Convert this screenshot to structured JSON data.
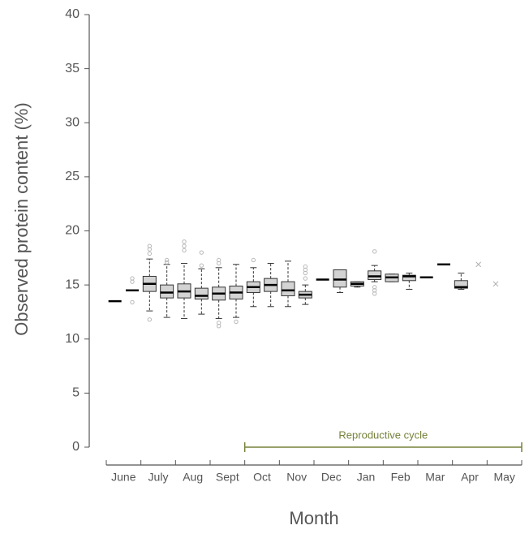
{
  "chart_data": {
    "type": "box",
    "y_label": "Observed protein content (%)",
    "x_label": "Month",
    "categories": [
      "June",
      "July",
      "Aug",
      "Sept",
      "Oct",
      "Nov",
      "Dec",
      "Jan",
      "Feb",
      "Mar",
      "Apr",
      "May"
    ],
    "ylim": [
      0,
      40
    ],
    "yticks": [
      0,
      5,
      10,
      15,
      20,
      25,
      30,
      35,
      40
    ],
    "box_color": "#d3d3d3",
    "outlier_color": "#b8b8b8",
    "annotation": {
      "text": "Reproductive cycle",
      "color": "#76823a"
    },
    "boxes": [
      {
        "min": 13.5,
        "q1": 13.5,
        "median": 13.5,
        "q3": 13.5,
        "max": 13.5,
        "outliers": []
      },
      {
        "min": 14.5,
        "q1": 14.5,
        "median": 14.5,
        "q3": 14.5,
        "max": 14.5,
        "outliers": [
          15.6,
          15.3,
          13.4
        ]
      },
      {
        "min": 12.6,
        "q1": 14.4,
        "median": 15.1,
        "q3": 15.8,
        "max": 17.4,
        "outliers": [
          18.6,
          18.3,
          17.9,
          11.8
        ]
      },
      {
        "min": 12.0,
        "q1": 13.8,
        "median": 14.3,
        "q3": 15.0,
        "max": 16.9,
        "outliers": [
          17.3,
          17.1
        ]
      },
      {
        "min": 11.9,
        "q1": 13.8,
        "median": 14.4,
        "q3": 15.1,
        "max": 17.0,
        "outliers": [
          19.0,
          18.6,
          18.2
        ]
      },
      {
        "min": 12.3,
        "q1": 13.7,
        "median": 14.0,
        "q3": 14.7,
        "max": 16.5,
        "outliers": [
          18.0,
          16.8
        ]
      },
      {
        "min": 11.9,
        "q1": 13.6,
        "median": 14.2,
        "q3": 14.8,
        "max": 16.6,
        "outliers": [
          17.3,
          17.0,
          11.5,
          11.2
        ]
      },
      {
        "min": 12.0,
        "q1": 13.7,
        "median": 14.3,
        "q3": 14.9,
        "max": 16.9,
        "outliers": [
          11.6
        ]
      },
      {
        "min": 13.0,
        "q1": 14.3,
        "median": 14.8,
        "q3": 15.3,
        "max": 16.6,
        "outliers": [
          17.3
        ]
      },
      {
        "min": 13.0,
        "q1": 14.4,
        "median": 15.0,
        "q3": 15.6,
        "max": 17.0,
        "outliers": []
      },
      {
        "min": 13.0,
        "q1": 14.0,
        "median": 14.5,
        "q3": 15.3,
        "max": 17.2,
        "outliers": []
      },
      {
        "min": 13.2,
        "q1": 13.8,
        "median": 14.1,
        "q3": 14.4,
        "max": 15.0,
        "outliers": [
          16.7,
          16.4,
          16.1,
          15.6
        ]
      },
      {
        "min": 15.5,
        "q1": 15.5,
        "median": 15.5,
        "q3": 15.5,
        "max": 15.5,
        "outliers": []
      },
      {
        "min": 14.3,
        "q1": 14.8,
        "median": 15.5,
        "q3": 16.4,
        "max": 16.4,
        "outliers": []
      },
      {
        "min": 14.8,
        "q1": 14.9,
        "median": 15.1,
        "q3": 15.3,
        "max": 15.3,
        "outliers": []
      },
      {
        "min": 15.3,
        "q1": 15.5,
        "median": 15.8,
        "q3": 16.3,
        "max": 16.8,
        "outliers": [
          18.1,
          14.8,
          14.5,
          14.2
        ]
      },
      {
        "min": 15.3,
        "q1": 15.3,
        "median": 15.7,
        "q3": 16.0,
        "max": 16.0,
        "outliers": []
      },
      {
        "min": 14.6,
        "q1": 15.4,
        "median": 15.8,
        "q3": 15.9,
        "max": 16.1,
        "outliers": []
      },
      {
        "min": 15.7,
        "q1": 15.7,
        "median": 15.7,
        "q3": 15.7,
        "max": 15.7,
        "outliers": []
      },
      {
        "min": 16.9,
        "q1": 16.9,
        "median": 16.9,
        "q3": 16.9,
        "max": 16.9,
        "outliers": []
      },
      {
        "min": 14.6,
        "q1": 14.7,
        "median": 14.8,
        "q3": 15.4,
        "max": 16.1,
        "outliers": []
      },
      {
        "mean": 16.9
      },
      {
        "mean": 15.1
      }
    ]
  }
}
